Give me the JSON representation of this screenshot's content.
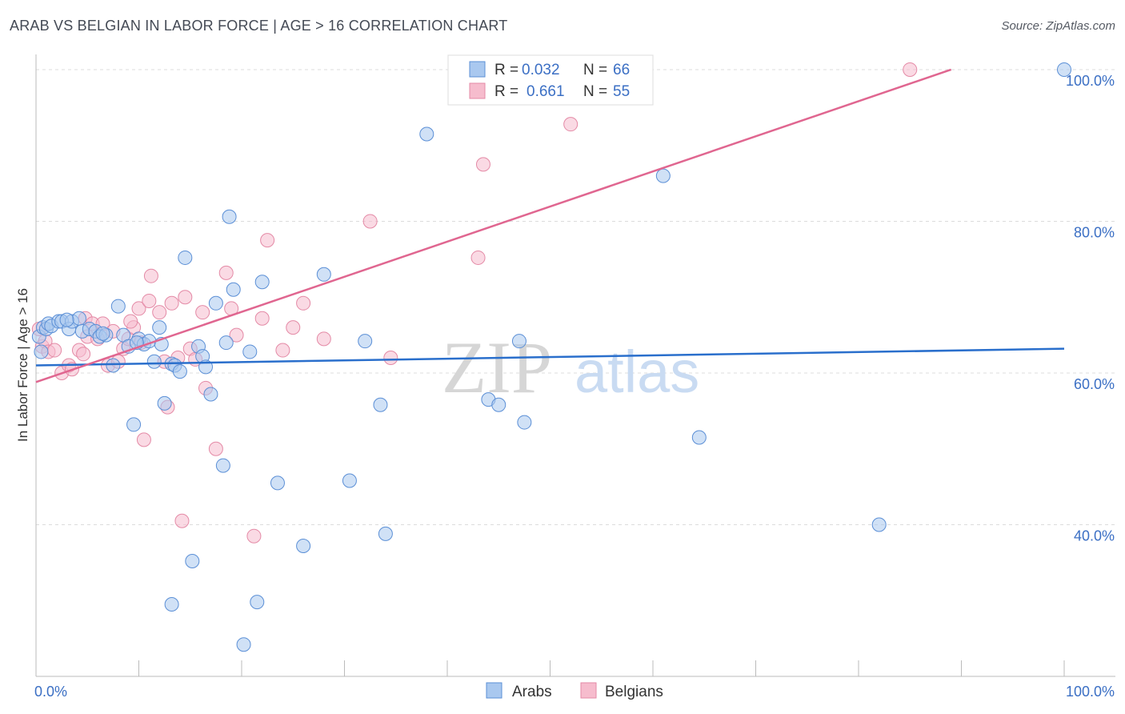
{
  "title": "ARAB VS BELGIAN IN LABOR FORCE | AGE > 16 CORRELATION CHART",
  "source": "Source: ZipAtlas.com",
  "watermark": {
    "zip": "ZIP",
    "atlas": "atlas"
  },
  "colors": {
    "arabs_fill": "#a9c8ef",
    "arabs_stroke": "#5b8fd6",
    "arabs_line": "#2a6fcc",
    "belgians_fill": "#f6bccd",
    "belgians_stroke": "#e48aa6",
    "belgians_line": "#e06690",
    "accent_text": "#3b6fc4",
    "grid": "#dcdcdc"
  },
  "legend_top": [
    {
      "series": "Arabs",
      "r_label": "R =",
      "r_value": "0.032",
      "n_label": "N =",
      "n_value": "66"
    },
    {
      "series": "Belgians",
      "r_label": "R =",
      "r_value": "0.661",
      "n_label": "N =",
      "n_value": "55"
    }
  ],
  "chart_data": {
    "type": "scatter",
    "title": "ARAB VS BELGIAN IN LABOR FORCE | AGE > 16 CORRELATION CHART",
    "xlabel": "",
    "ylabel": "In Labor Force | Age > 16",
    "xlim": [
      0,
      100
    ],
    "ylim": [
      20,
      102
    ],
    "x_tick_labels": [
      {
        "value": 0,
        "label": "0.0%"
      },
      {
        "value": 100,
        "label": "100.0%"
      }
    ],
    "y_tick_labels": [
      {
        "value": 40,
        "label": "40.0%"
      },
      {
        "value": 60,
        "label": "60.0%"
      },
      {
        "value": 80,
        "label": "80.0%"
      },
      {
        "value": 100,
        "label": "100.0%"
      }
    ],
    "grid": true,
    "legend_placement": "top-center",
    "series": [
      {
        "name": "Arabs",
        "trend": {
          "x": [
            0,
            100
          ],
          "y": [
            61.0,
            63.2
          ]
        },
        "points": [
          [
            0.3,
            64.8
          ],
          [
            0.5,
            62.8
          ],
          [
            0.7,
            66.0
          ],
          [
            1.0,
            65.8
          ],
          [
            1.2,
            66.5
          ],
          [
            1.5,
            66.2
          ],
          [
            2.2,
            66.8
          ],
          [
            2.5,
            66.8
          ],
          [
            3.2,
            65.8
          ],
          [
            3.5,
            66.8
          ],
          [
            4.2,
            67.2
          ],
          [
            4.5,
            65.5
          ],
          [
            5.2,
            65.8
          ],
          [
            5.8,
            65.5
          ],
          [
            6.2,
            64.8
          ],
          [
            6.8,
            65.0
          ],
          [
            7.5,
            61.0
          ],
          [
            8.0,
            68.8
          ],
          [
            8.5,
            65.0
          ],
          [
            9.0,
            63.5
          ],
          [
            9.5,
            53.2
          ],
          [
            10.0,
            64.5
          ],
          [
            10.5,
            63.8
          ],
          [
            11.0,
            64.2
          ],
          [
            11.5,
            61.5
          ],
          [
            12.0,
            66.0
          ],
          [
            12.2,
            63.8
          ],
          [
            12.5,
            56.0
          ],
          [
            13.2,
            61.2
          ],
          [
            13.5,
            61.0
          ],
          [
            14.0,
            60.2
          ],
          [
            14.5,
            75.2
          ],
          [
            15.2,
            35.2
          ],
          [
            15.8,
            63.5
          ],
          [
            16.2,
            62.2
          ],
          [
            16.5,
            60.8
          ],
          [
            17.0,
            57.2
          ],
          [
            17.5,
            69.2
          ],
          [
            18.2,
            47.8
          ],
          [
            18.5,
            64.0
          ],
          [
            18.8,
            80.6
          ],
          [
            19.2,
            71.0
          ],
          [
            20.2,
            24.2
          ],
          [
            20.8,
            62.8
          ],
          [
            21.5,
            29.8
          ],
          [
            22.0,
            72.0
          ],
          [
            23.5,
            45.5
          ],
          [
            26.0,
            37.2
          ],
          [
            28.0,
            73.0
          ],
          [
            30.5,
            45.8
          ],
          [
            32.0,
            64.2
          ],
          [
            33.5,
            55.8
          ],
          [
            34.0,
            38.8
          ],
          [
            38.0,
            91.5
          ],
          [
            44.0,
            56.5
          ],
          [
            45.0,
            55.8
          ],
          [
            47.0,
            64.2
          ],
          [
            47.5,
            53.5
          ],
          [
            61.0,
            86.0
          ],
          [
            64.5,
            51.5
          ],
          [
            82.0,
            40.0
          ],
          [
            100.0,
            100.0
          ],
          [
            13.2,
            29.5
          ],
          [
            9.8,
            64.0
          ],
          [
            6.5,
            65.2
          ],
          [
            3.0,
            67.0
          ]
        ]
      },
      {
        "name": "Belgians",
        "trend": {
          "x": [
            0,
            89
          ],
          "y": [
            58.8,
            100.0
          ]
        },
        "points": [
          [
            0.3,
            65.8
          ],
          [
            0.6,
            63.5
          ],
          [
            0.9,
            64.2
          ],
          [
            1.2,
            62.8
          ],
          [
            1.8,
            63.0
          ],
          [
            2.5,
            60.0
          ],
          [
            3.2,
            61.0
          ],
          [
            3.5,
            60.5
          ],
          [
            4.2,
            63.0
          ],
          [
            4.8,
            67.2
          ],
          [
            5.0,
            64.8
          ],
          [
            5.5,
            66.5
          ],
          [
            6.0,
            64.5
          ],
          [
            6.5,
            66.5
          ],
          [
            7.0,
            61.0
          ],
          [
            7.5,
            65.5
          ],
          [
            8.0,
            61.5
          ],
          [
            8.5,
            63.2
          ],
          [
            9.0,
            64.5
          ],
          [
            9.5,
            66.0
          ],
          [
            10.0,
            68.5
          ],
          [
            10.2,
            64.0
          ],
          [
            10.5,
            51.2
          ],
          [
            11.0,
            69.5
          ],
          [
            11.2,
            72.8
          ],
          [
            12.0,
            68.0
          ],
          [
            12.5,
            61.5
          ],
          [
            12.8,
            55.5
          ],
          [
            13.2,
            69.2
          ],
          [
            13.8,
            62.0
          ],
          [
            14.2,
            40.5
          ],
          [
            14.5,
            70.0
          ],
          [
            15.0,
            63.2
          ],
          [
            15.5,
            61.8
          ],
          [
            16.2,
            68.0
          ],
          [
            16.5,
            58.0
          ],
          [
            17.5,
            50.0
          ],
          [
            18.5,
            73.2
          ],
          [
            19.0,
            68.5
          ],
          [
            19.5,
            65.0
          ],
          [
            21.2,
            38.5
          ],
          [
            22.0,
            67.2
          ],
          [
            22.5,
            77.5
          ],
          [
            24.0,
            63.0
          ],
          [
            25.0,
            66.0
          ],
          [
            26.0,
            69.2
          ],
          [
            28.0,
            64.5
          ],
          [
            32.5,
            80.0
          ],
          [
            34.5,
            62.0
          ],
          [
            43.5,
            87.5
          ],
          [
            43.0,
            75.2
          ],
          [
            52.0,
            92.8
          ],
          [
            85.0,
            100.0
          ],
          [
            9.2,
            66.8
          ],
          [
            4.6,
            62.5
          ]
        ]
      }
    ]
  },
  "legend_bottom": [
    {
      "label": "Arabs"
    },
    {
      "label": "Belgians"
    }
  ]
}
